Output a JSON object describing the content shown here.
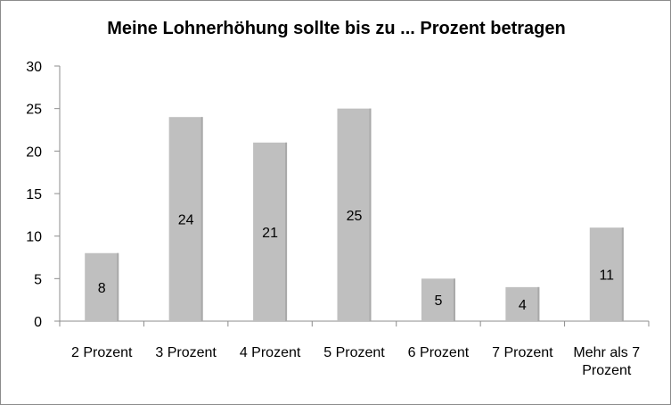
{
  "chart_data": {
    "type": "bar",
    "title": "Meine Lohnerhöhung sollte bis zu ... Prozent betragen",
    "categories": [
      "2 Prozent",
      "3 Prozent",
      "4 Prozent",
      "5 Prozent",
      "6 Prozent",
      "7 Prozent",
      "Mehr als 7 Prozent"
    ],
    "category_lines": [
      [
        "2 Prozent"
      ],
      [
        "3 Prozent"
      ],
      [
        "4 Prozent"
      ],
      [
        "5 Prozent"
      ],
      [
        "6 Prozent"
      ],
      [
        "7 Prozent"
      ],
      [
        "Mehr als 7",
        "Prozent"
      ]
    ],
    "values": [
      8,
      24,
      21,
      25,
      5,
      4,
      11
    ],
    "ylim": [
      0,
      30
    ],
    "yticks": [
      0,
      5,
      10,
      15,
      20,
      25,
      30
    ],
    "xlabel": "",
    "ylabel": "",
    "grid": false,
    "legend": "none",
    "bar_color": "#bfbfbf",
    "data_labels": true
  }
}
